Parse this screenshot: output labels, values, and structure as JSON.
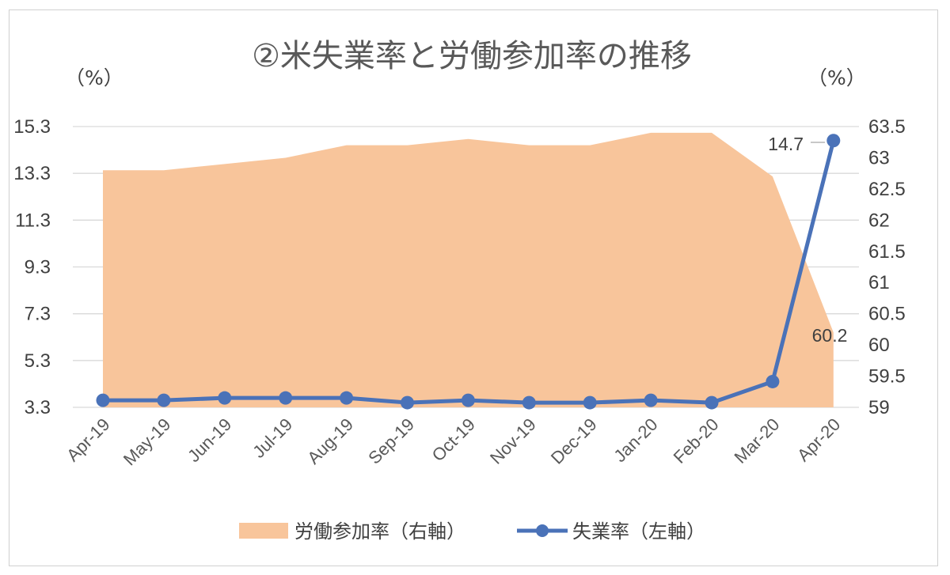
{
  "chart_data": {
    "type": "line+area",
    "title": "②米失業率と労働参加率の推移",
    "left_unit": "（%）",
    "right_unit": "（%）",
    "categories": [
      "Apr-19",
      "May-19",
      "Jun-19",
      "Jul-19",
      "Aug-19",
      "Sep-19",
      "Oct-19",
      "Nov-19",
      "Dec-19",
      "Jan-20",
      "Feb-20",
      "Mar-20",
      "Apr-20"
    ],
    "left_axis": {
      "min": 3.3,
      "max": 15.3,
      "ticks": [
        "15.3",
        "13.3",
        "11.3",
        "9.3",
        "7.3",
        "5.3",
        "3.3"
      ]
    },
    "right_axis": {
      "min": 59,
      "max": 63.5,
      "ticks": [
        "63.5",
        "63",
        "62.5",
        "62",
        "61.5",
        "61",
        "60.5",
        "60",
        "59.5",
        "59"
      ]
    },
    "series": [
      {
        "name": "労働参加率（右軸）",
        "type": "area",
        "axis": "right",
        "color": "#f8c59b",
        "values": [
          62.8,
          62.8,
          62.9,
          63.0,
          63.2,
          63.2,
          63.3,
          63.2,
          63.2,
          63.4,
          63.4,
          62.7,
          60.2
        ]
      },
      {
        "name": "失業率（左軸）",
        "type": "line",
        "axis": "left",
        "color": "#4a72b8",
        "values": [
          3.6,
          3.6,
          3.7,
          3.7,
          3.7,
          3.5,
          3.6,
          3.5,
          3.5,
          3.6,
          3.5,
          4.4,
          14.7
        ]
      }
    ],
    "data_labels": {
      "unemployment_last": "14.7",
      "participation_last": "60.2"
    },
    "legend_position": "bottom",
    "grid": true
  }
}
